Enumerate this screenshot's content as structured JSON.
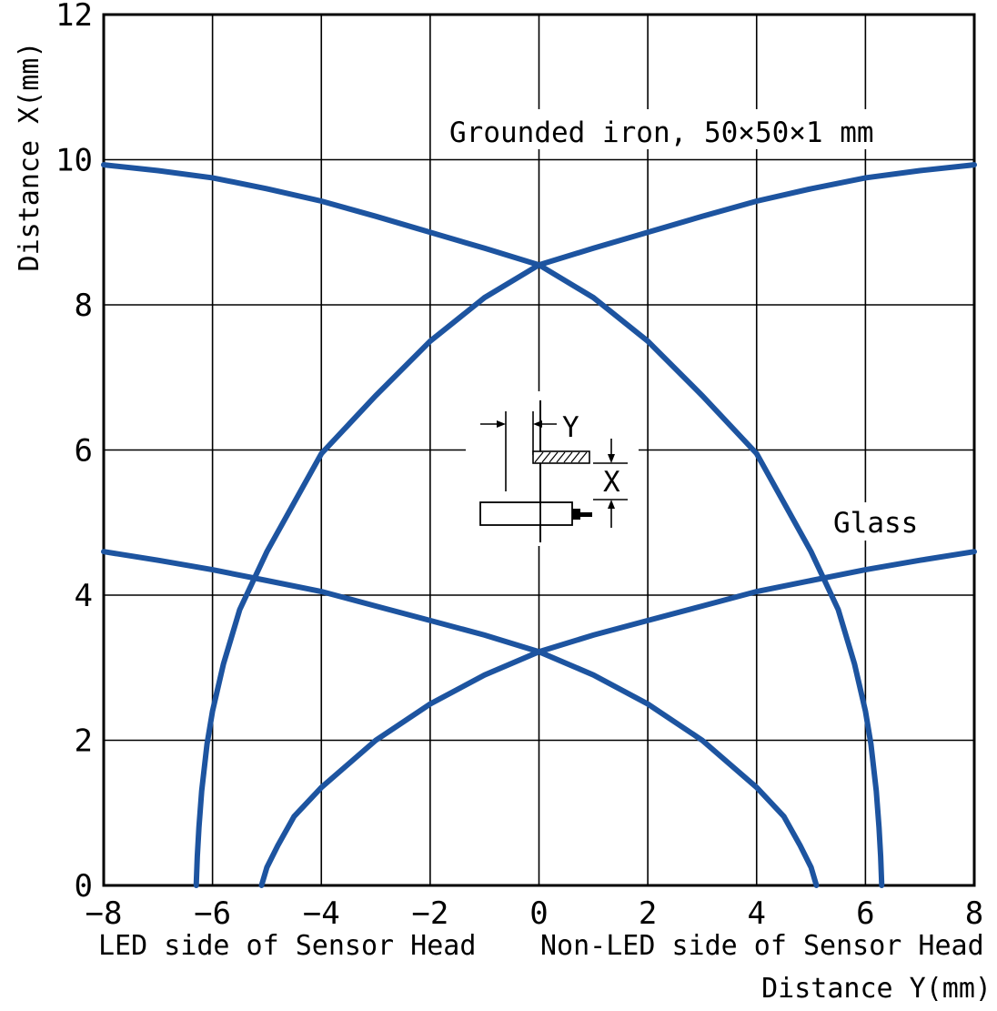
{
  "chart_data": {
    "type": "line",
    "xlabel": "Distance Y(mm)",
    "ylabel": "Distance X(mm)",
    "xlim": [
      -8,
      8
    ],
    "ylim": [
      0,
      12
    ],
    "x_ticks": [
      "−8",
      "−6",
      "−4",
      "−2",
      "0",
      "2",
      "4",
      "6",
      "8"
    ],
    "y_ticks": [
      "0",
      "2",
      "4",
      "6",
      "8",
      "10",
      "12"
    ],
    "x_side_labels": {
      "left": "LED side of Sensor Head",
      "right": "Non-LED side of Sensor Head"
    },
    "grid": true,
    "colors": {
      "curve": "#1d54a0"
    },
    "annotations": {
      "iron": "Grounded iron, 50×50×1 mm",
      "glass": "Glass"
    },
    "inset": {
      "y_label": "Y",
      "x_label": "X"
    },
    "series": [
      {
        "name": "Grounded iron, 50×50×1 mm",
        "branches": [
          {
            "x": [
              -8,
              -7,
              -6,
              -5,
              -4,
              -3,
              -2,
              -1,
              0,
              1,
              2,
              3,
              4,
              5,
              5.5,
              5.8,
              6.0,
              6.1,
              6.2,
              6.25,
              6.28,
              6.3
            ],
            "y": [
              9.93,
              9.85,
              9.75,
              9.6,
              9.43,
              9.22,
              9.0,
              8.78,
              8.55,
              8.1,
              7.5,
              6.75,
              5.95,
              4.6,
              3.8,
              3.05,
              2.4,
              1.95,
              1.3,
              0.8,
              0.4,
              0.0
            ]
          },
          {
            "x": [
              -6.3,
              -6.28,
              -6.25,
              -6.2,
              -6.1,
              -6.0,
              -5.8,
              -5.5,
              -5,
              -4,
              -3,
              -2,
              -1,
              0,
              1,
              2,
              3,
              4,
              5,
              6,
              7,
              8
            ],
            "y": [
              0.0,
              0.4,
              0.8,
              1.3,
              1.95,
              2.4,
              3.05,
              3.8,
              4.6,
              5.95,
              6.75,
              7.5,
              8.1,
              8.55,
              8.78,
              9.0,
              9.22,
              9.43,
              9.6,
              9.75,
              9.85,
              9.93
            ]
          }
        ]
      },
      {
        "name": "Glass",
        "branches": [
          {
            "x": [
              -8,
              -7,
              -6,
              -5,
              -4,
              -3,
              -2,
              -1,
              0,
              1,
              2,
              3,
              4,
              4.5,
              4.8,
              5.0,
              5.1
            ],
            "y": [
              4.6,
              4.48,
              4.35,
              4.2,
              4.05,
              3.85,
              3.65,
              3.45,
              3.22,
              2.9,
              2.5,
              2.0,
              1.35,
              0.95,
              0.55,
              0.25,
              0.0
            ]
          },
          {
            "x": [
              -5.1,
              -5.0,
              -4.8,
              -4.5,
              -4,
              -3,
              -2,
              -1,
              0,
              1,
              2,
              3,
              4,
              5,
              6,
              7,
              8
            ],
            "y": [
              0.0,
              0.25,
              0.55,
              0.95,
              1.35,
              2.0,
              2.5,
              2.9,
              3.22,
              3.45,
              3.65,
              3.85,
              4.05,
              4.2,
              4.35,
              4.48,
              4.6
            ]
          }
        ]
      }
    ]
  }
}
